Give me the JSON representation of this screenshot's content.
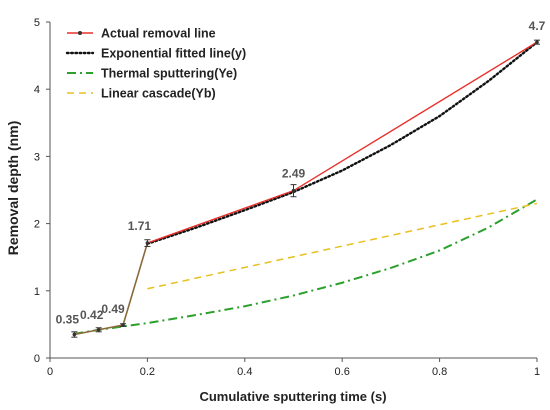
{
  "chart_data": {
    "type": "line",
    "xlabel": "Cumulative sputtering time (s)",
    "ylabel": "Removal depth (nm)",
    "xlim": [
      0,
      1
    ],
    "ylim": [
      0,
      5
    ],
    "xticks": [
      0,
      0.2,
      0.4,
      0.6,
      0.8,
      1
    ],
    "xtick_labels": [
      "0",
      "0.2",
      "0.4",
      "0.6",
      "0.8",
      "1"
    ],
    "yticks": [
      0,
      1,
      2,
      3,
      4,
      5
    ],
    "ytick_labels": [
      "0",
      "1",
      "2",
      "3",
      "4",
      "5"
    ],
    "grid": false,
    "legend_position": "top-left",
    "series": [
      {
        "name": "Actual removal line",
        "style": "solid",
        "color": "#e8302a",
        "early_color": "#8a6a3a",
        "markers": true,
        "x": [
          0.05,
          0.1,
          0.15,
          0.2,
          0.5,
          1.0
        ],
        "y": [
          0.35,
          0.42,
          0.49,
          1.71,
          2.49,
          4.7
        ],
        "error": [
          0.04,
          0.03,
          0.02,
          0.05,
          0.09,
          0.03
        ]
      },
      {
        "name": "Exponential fitted line(y)",
        "style": "dotted",
        "color": "#111111",
        "x": [
          0.2,
          0.3,
          0.4,
          0.5,
          0.6,
          0.7,
          0.8,
          0.9,
          1.0
        ],
        "y": [
          1.7,
          1.94,
          2.2,
          2.47,
          2.79,
          3.17,
          3.6,
          4.12,
          4.7
        ]
      },
      {
        "name": "Thermal sputtering(Ye)",
        "style": "dashdot",
        "color": "#2ca02c",
        "x": [
          0.05,
          0.1,
          0.15,
          0.2,
          0.3,
          0.4,
          0.5,
          0.6,
          0.7,
          0.8,
          0.9,
          1.0
        ],
        "y": [
          0.36,
          0.42,
          0.47,
          0.52,
          0.64,
          0.77,
          0.93,
          1.12,
          1.34,
          1.6,
          1.94,
          2.36
        ]
      },
      {
        "name": "Linear cascade(Yb)",
        "style": "dashed",
        "color": "#e8c020",
        "x": [
          0.2,
          1.0
        ],
        "y": [
          1.03,
          2.3
        ]
      }
    ],
    "data_labels": [
      {
        "text": "0.35",
        "x": 0.05,
        "y": 0.35
      },
      {
        "text": "0.42",
        "x": 0.1,
        "y": 0.42
      },
      {
        "text": "0.49",
        "x": 0.15,
        "y": 0.49
      },
      {
        "text": "1.71",
        "x": 0.2,
        "y": 1.71
      },
      {
        "text": "2.49",
        "x": 0.5,
        "y": 2.49
      },
      {
        "text": "4.7",
        "x": 1.0,
        "y": 4.7
      }
    ]
  }
}
